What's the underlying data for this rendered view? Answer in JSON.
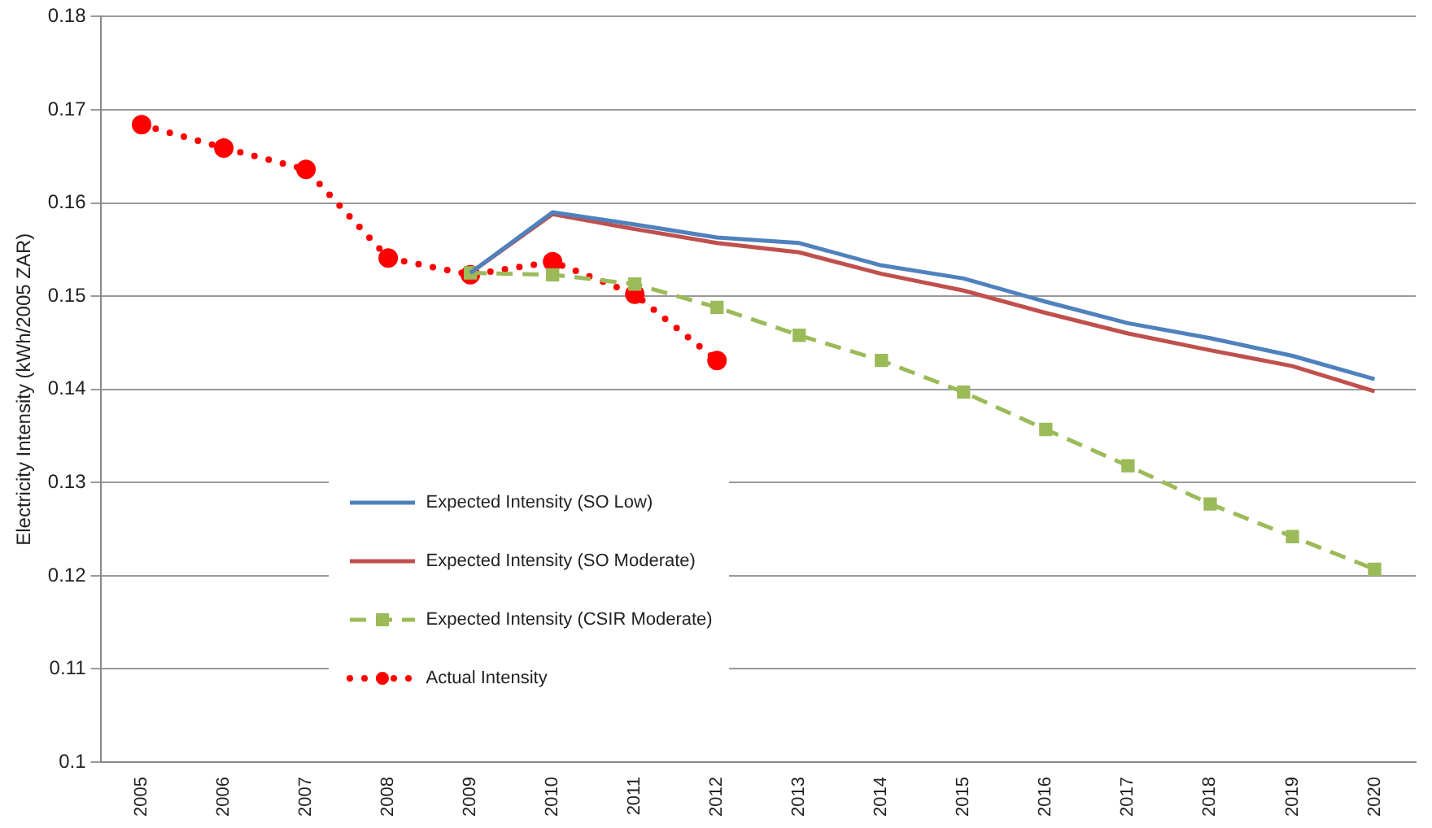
{
  "chart_data": {
    "type": "line",
    "ylabel": "Electricity Intensity (kWh/2005 ZAR)",
    "categories": [
      "2005",
      "2006",
      "2007",
      "2008",
      "2009",
      "2010",
      "2011",
      "2012",
      "2013",
      "2014",
      "2015",
      "2016",
      "2017",
      "2018",
      "2019",
      "2020"
    ],
    "ylim": [
      0.1,
      0.18
    ],
    "yticks": [
      0.1,
      0.11,
      0.12,
      0.13,
      0.14,
      0.15,
      0.16,
      0.17,
      0.18
    ],
    "grid": "y",
    "legend": "bottom left",
    "series": [
      {
        "name": "Expected Intensity (SO Low)",
        "color": "#4f81bd",
        "marker": "none",
        "line_style": "solid",
        "values": [
          null,
          null,
          null,
          null,
          0.1525,
          0.159,
          0.1577,
          0.1563,
          0.1557,
          0.1533,
          0.1519,
          0.1494,
          0.1471,
          0.1455,
          0.1436,
          0.1411
        ]
      },
      {
        "name": "Expected Intensity (SO Moderate)",
        "color": "#c0504d",
        "marker": "none",
        "line_style": "solid",
        "values": [
          null,
          null,
          null,
          null,
          0.1525,
          0.1588,
          0.1572,
          0.1557,
          0.1547,
          0.1524,
          0.1506,
          0.1482,
          0.146,
          0.1442,
          0.1425,
          0.1398
        ]
      },
      {
        "name": "Expected Intensity (CSIR Moderate)",
        "color": "#9bbb59",
        "marker": "square",
        "line_style": "dashed",
        "values": [
          null,
          null,
          null,
          null,
          0.1525,
          0.1523,
          0.1513,
          0.1488,
          0.1458,
          0.1431,
          0.1397,
          0.1357,
          0.1318,
          0.1277,
          0.1242,
          0.1207
        ]
      },
      {
        "name": "Actual Intensity",
        "color": "#ff0000",
        "marker": "circle",
        "line_style": "dotted",
        "values": [
          0.1684,
          0.1659,
          0.1636,
          0.1541,
          0.1523,
          0.1537,
          0.1502,
          0.1431,
          null,
          null,
          null,
          null,
          null,
          null,
          null,
          null
        ]
      }
    ]
  }
}
